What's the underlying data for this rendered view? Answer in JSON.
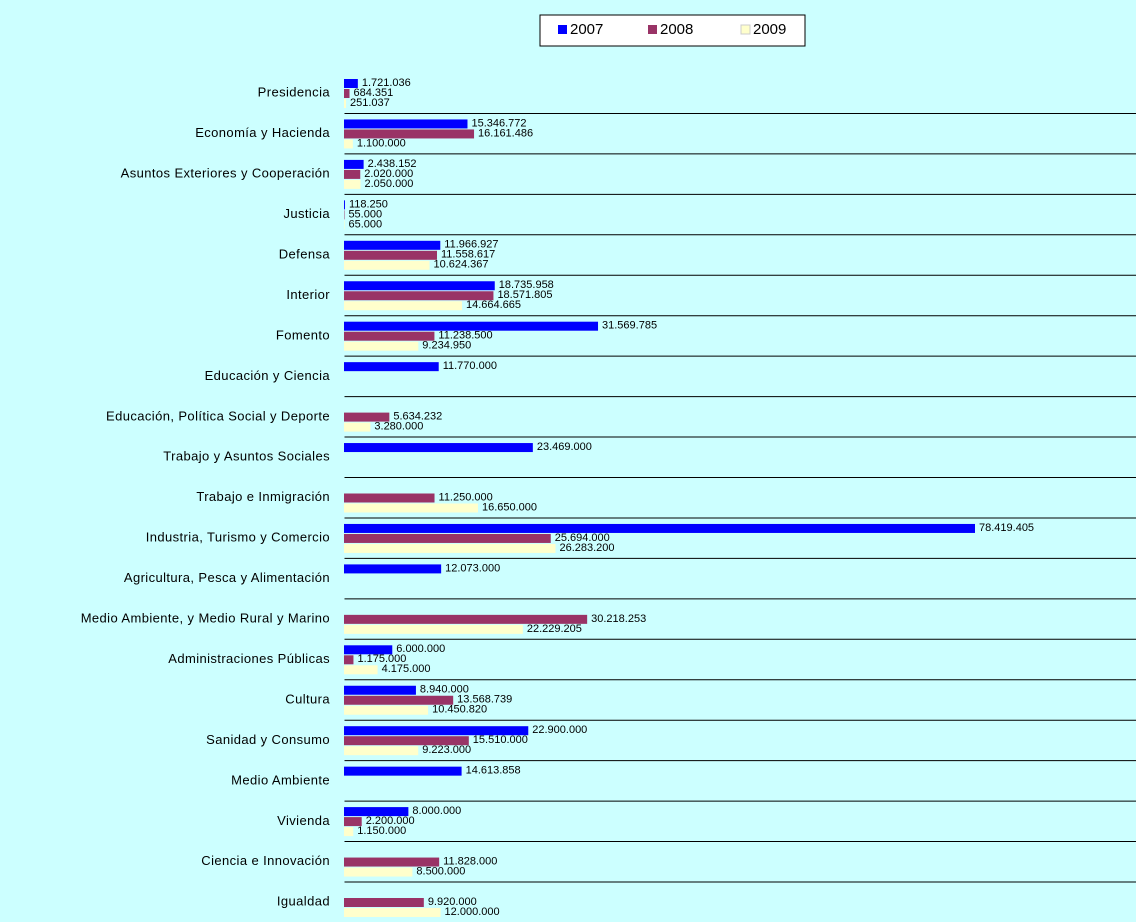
{
  "chart_data": {
    "type": "bar",
    "orientation": "horizontal",
    "legend": "top",
    "categories": [
      "Presidencia",
      "Economía y Hacienda",
      "Asuntos Exteriores y Cooperación",
      "Justicia",
      "Defensa",
      "Interior",
      "Fomento",
      "Educación y Ciencia",
      "Educación, Política Social y Deporte",
      "Trabajo y Asuntos Sociales",
      "Trabajo e Inmigración",
      "Industria, Turismo y Comercio",
      "Agricultura, Pesca y Alimentación",
      "Medio Ambiente, y Medio Rural y Marino",
      "Administraciones Públicas",
      "Cultura",
      "Sanidad y Consumo",
      "Medio Ambiente",
      "Vivienda",
      "Ciencia e Innovación",
      "Igualdad"
    ],
    "series": [
      {
        "name": "2007",
        "color": "#0000ff",
        "values": [
          1721036,
          15346772,
          2438152,
          118250,
          11966927,
          18735958,
          31569785,
          11770000,
          null,
          23469000,
          null,
          78419405,
          12073000,
          null,
          6000000,
          8940000,
          22900000,
          14613858,
          8000000,
          null,
          null
        ],
        "value_labels": [
          "1.721.036",
          "15.346.772",
          "2.438.152",
          "118.250",
          "11.966.927",
          "18.735.958",
          "31.569.785",
          "11.770.000",
          null,
          "23.469.000",
          null,
          "78.419.405",
          "12.073.000",
          null,
          "6.000.000",
          "8.940.000",
          "22.900.000",
          "14.613.858",
          "8.000.000",
          null,
          null
        ]
      },
      {
        "name": "2008",
        "color": "#993366",
        "values": [
          684351,
          16161486,
          2020000,
          55000,
          11558617,
          18571805,
          11238500,
          null,
          5634232,
          null,
          11250000,
          25694000,
          null,
          30218253,
          1175000,
          13568739,
          15510000,
          null,
          2200000,
          11828000,
          9920000
        ],
        "value_labels": [
          "684.351",
          "16.161.486",
          "2.020.000",
          "55.000",
          "11.558.617",
          "18.571.805",
          "11.238.500",
          null,
          "5.634.232",
          null,
          "11.250.000",
          "25.694.000",
          null,
          "30.218.253",
          "1.175.000",
          "13.568.739",
          "15.510.000",
          null,
          "2.200.000",
          "11.828.000",
          "9.920.000"
        ]
      },
      {
        "name": "2009",
        "color": "#ffffcc",
        "values": [
          251037,
          1100000,
          2050000,
          65000,
          10624367,
          14664665,
          9234950,
          null,
          3280000,
          null,
          16650000,
          26283200,
          null,
          22229205,
          4175000,
          10450820,
          9223000,
          null,
          1150000,
          8500000,
          12000000
        ],
        "value_labels": [
          "251.037",
          "1.100.000",
          "2.050.000",
          "65.000",
          "10.624.367",
          "14.664.665",
          "9.234.950",
          null,
          "3.280.000",
          null,
          "16.650.000",
          "26.283.200",
          null,
          "22.229.205",
          "4.175.000",
          "10.450.820",
          "9.223.000",
          null,
          "1.150.000",
          "8.500.000",
          "12.000.000"
        ]
      }
    ]
  }
}
